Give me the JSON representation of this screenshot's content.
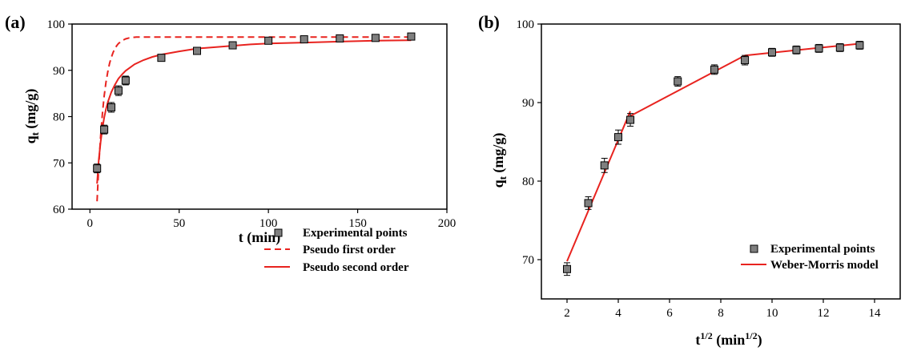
{
  "colors": {
    "fit": "#e8231f",
    "marker_fill": "#7f7f7f",
    "marker_edge": "#000000",
    "axis": "#000000"
  },
  "chart_data": [
    {
      "panel": "(a)",
      "type": "scatter",
      "xlabel": "t (min)",
      "ylabel": "qt (mg/g)",
      "ylabel_main": "q",
      "ylabel_sub": "t",
      "ylabel_tail": " (mg/g)",
      "xlim": [
        -10,
        200
      ],
      "ylim": [
        60,
        100
      ],
      "xticks": [
        0,
        50,
        100,
        150,
        200
      ],
      "yticks": [
        60,
        70,
        80,
        90,
        100
      ],
      "legend_position": "bottom-right",
      "legend": [
        "Experimental points",
        "Pseudo first order",
        "Pseudo second order"
      ],
      "experimental": {
        "name": "Experimental points",
        "x": [
          4,
          8,
          12,
          16,
          20,
          40,
          60,
          80,
          100,
          120,
          140,
          160,
          180
        ],
        "y": [
          68.8,
          77.2,
          82.0,
          85.6,
          87.8,
          92.7,
          94.2,
          95.4,
          96.4,
          96.7,
          96.9,
          97.0,
          97.3
        ],
        "err": [
          0.6,
          0.6,
          0.7,
          0.7,
          0.6,
          0.4,
          0.4,
          0.4,
          0.3,
          0.3,
          0.3,
          0.3,
          0.3
        ]
      },
      "fits": [
        {
          "name": "Pseudo first order",
          "style": "dashed",
          "x": [
            4,
            5,
            6,
            7,
            8,
            9,
            10,
            11,
            12,
            13,
            14,
            15,
            16,
            17,
            18,
            19,
            20,
            22,
            24,
            26,
            28,
            30,
            40,
            60,
            80,
            100,
            120,
            140,
            160,
            180
          ],
          "y": [
            61.7,
            69.7,
            75.9,
            80.7,
            84.5,
            87.4,
            89.7,
            91.5,
            92.8,
            93.9,
            94.7,
            95.3,
            95.8,
            96.1,
            96.4,
            96.6,
            96.8,
            97.0,
            97.1,
            97.2,
            97.2,
            97.2,
            97.2,
            97.2,
            97.2,
            97.2,
            97.2,
            97.2,
            97.2,
            97.2
          ]
        },
        {
          "name": "Pseudo second order",
          "style": "solid",
          "x": [
            4,
            5,
            6,
            7,
            8,
            9,
            10,
            12,
            14,
            16,
            18,
            20,
            25,
            30,
            35,
            40,
            50,
            60,
            70,
            80,
            90,
            100,
            120,
            140,
            160,
            180
          ],
          "y": [
            65.5,
            70.8,
            74.6,
            77.5,
            79.8,
            81.6,
            83.1,
            85.3,
            86.9,
            88.2,
            89.1,
            89.9,
            91.3,
            92.2,
            92.9,
            93.4,
            94.1,
            94.7,
            95.0,
            95.3,
            95.6,
            95.8,
            96.0,
            96.2,
            96.4,
            96.5
          ]
        }
      ]
    },
    {
      "panel": "(b)",
      "type": "scatter",
      "xlabel": "t1/2 (min1/2)",
      "xlabel_main": "t",
      "xlabel_sup": "1/2",
      "xlabel_mid": " (min",
      "xlabel_sup2": "1/2",
      "xlabel_tail": ")",
      "ylabel": "qt (mg/g)",
      "ylabel_main": "q",
      "ylabel_sub": "t",
      "ylabel_tail": " (mg/g)",
      "xlim": [
        1,
        15
      ],
      "ylim": [
        65,
        100
      ],
      "xticks": [
        2,
        4,
        6,
        8,
        10,
        12,
        14
      ],
      "yticks": [
        70,
        80,
        90,
        100
      ],
      "legend_position": "bottom-right",
      "legend": [
        "Experimental points",
        "Weber-Morris model"
      ],
      "experimental": {
        "name": "Experimental points",
        "x": [
          2.0,
          2.83,
          3.46,
          4.0,
          4.47,
          6.32,
          7.75,
          8.94,
          10.0,
          10.95,
          11.83,
          12.65,
          13.42
        ],
        "y": [
          68.8,
          77.2,
          82.0,
          85.6,
          87.8,
          92.7,
          94.2,
          95.4,
          96.4,
          96.7,
          96.9,
          97.0,
          97.3
        ],
        "err": [
          0.6,
          0.6,
          0.7,
          0.7,
          0.6,
          0.4,
          0.4,
          0.4,
          0.3,
          0.3,
          0.3,
          0.3,
          0.3
        ]
      },
      "fits": [
        {
          "name": "Weber-Morris model",
          "style": "solid",
          "segments": [
            {
              "x": [
                2.0,
                4.47
              ],
              "y": [
                69.8,
                88.9
              ]
            },
            {
              "x": [
                4.47,
                8.94
              ],
              "y": [
                88.3,
                96.0
              ]
            },
            {
              "x": [
                8.94,
                13.42
              ],
              "y": [
                96.0,
                97.5
              ]
            }
          ]
        }
      ]
    }
  ]
}
